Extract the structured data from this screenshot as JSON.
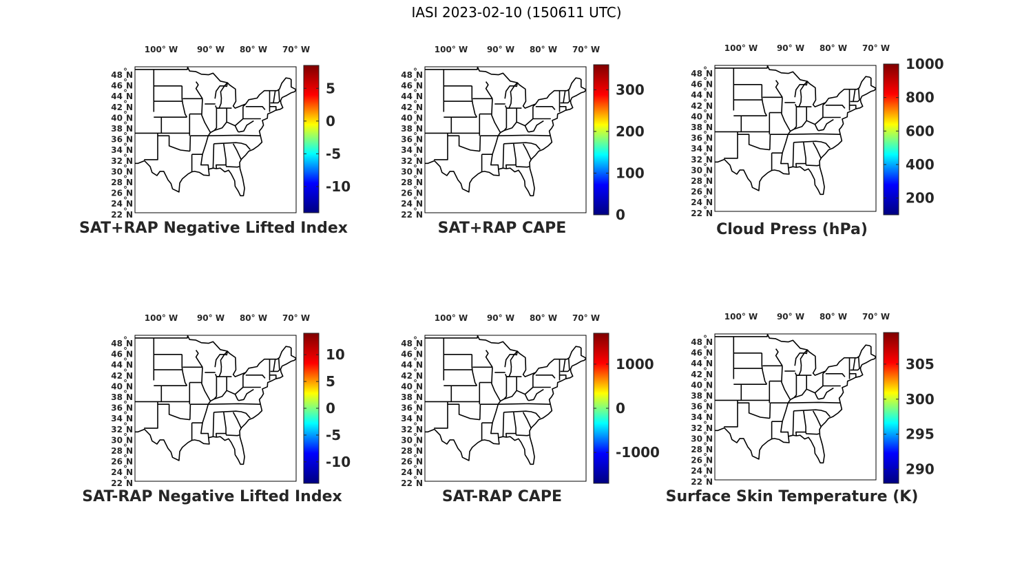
{
  "title": "IASI 2023-02-10 (150611 UTC)",
  "lon_ticks": [
    "100",
    "90",
    "80",
    "70"
  ],
  "lon_hemisphere": "W",
  "lat_ticks": [
    "48",
    "46",
    "44",
    "42",
    "40",
    "38",
    "36",
    "34",
    "32",
    "30",
    "28",
    "26",
    "24",
    "22"
  ],
  "lat_hemisphere": "N",
  "degree_symbol": "°",
  "colormap": "jet",
  "colormap_stops": [
    "#00007f",
    "#0000ff",
    "#00ffff",
    "#ffff00",
    "#ff0000",
    "#7f0000"
  ],
  "panels": [
    {
      "title": "SAT+RAP Negative Lifted Index",
      "colorbar": {
        "min": -14,
        "max": 8.5,
        "ticks": [
          -10,
          -5,
          0,
          5
        ]
      }
    },
    {
      "title": "SAT+RAP CAPE",
      "colorbar": {
        "min": 0,
        "max": 360,
        "ticks": [
          0,
          100,
          200,
          300
        ]
      }
    },
    {
      "title": "Cloud Press (hPa)",
      "colorbar": {
        "min": 100,
        "max": 1000,
        "ticks": [
          200,
          400,
          600,
          800,
          1000
        ]
      }
    },
    {
      "title": "SAT-RAP Negative Lifted Index",
      "colorbar": {
        "min": -14,
        "max": 14,
        "ticks": [
          -10,
          -5,
          0,
          5,
          10
        ]
      }
    },
    {
      "title": "SAT-RAP CAPE",
      "colorbar": {
        "min": -1700,
        "max": 1700,
        "ticks": [
          -1000,
          0,
          1000
        ]
      }
    },
    {
      "title": "Surface Skin Temperature (K)",
      "colorbar": {
        "min": 288,
        "max": 309.5,
        "ticks": [
          290,
          295,
          300,
          305
        ]
      }
    }
  ]
}
